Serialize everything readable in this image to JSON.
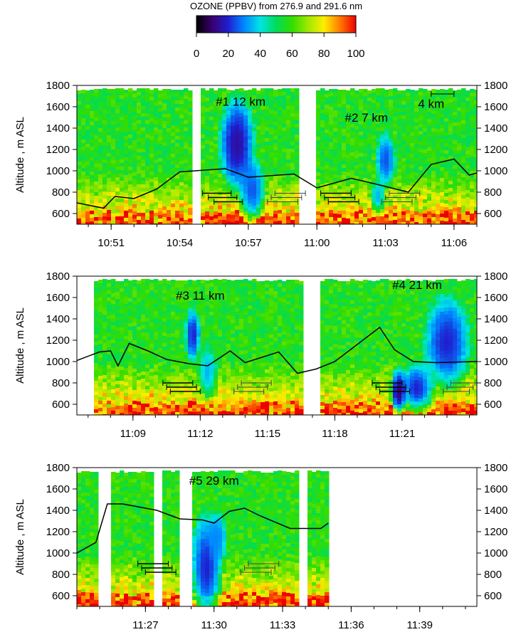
{
  "colorbar": {
    "title": "OZONE (PPBV) from 276.9 and 291.6 nm",
    "ticks": [
      0,
      20,
      40,
      60,
      80,
      100
    ],
    "range": [
      0,
      100
    ]
  },
  "chart_data": [
    {
      "type": "heatmap",
      "panel": 1,
      "ylabel": "Altitude , m ASL",
      "ylim": [
        500,
        1800
      ],
      "yticks": [
        600,
        800,
        1000,
        1200,
        1400,
        1600,
        1800
      ],
      "x_start": "10:49:30",
      "x_end": "11:07:00",
      "xticks": [
        "10:51",
        "10:54",
        "10:57",
        "11:00",
        "11:03",
        "11:06"
      ],
      "gaps": [
        [
          "10:54:30",
          "10:55:00"
        ],
        [
          "10:59:15",
          "11:00:00"
        ]
      ],
      "annotations": [
        {
          "text": "#1  12 km",
          "time": "10:56:40",
          "alt": 1610
        },
        {
          "text": "#2  7 km",
          "time": "11:02:10",
          "alt": 1460
        },
        {
          "text": "4 km",
          "time": "11:05:00",
          "alt": 1590
        }
      ],
      "scale_bar": {
        "from": "11:05:00",
        "to": "11:06:00",
        "alt": 1720
      },
      "plumes": [
        {
          "time": "10:56:30",
          "alt": 1250,
          "dt_min": 0.9,
          "dalt": 520,
          "value": 15
        },
        {
          "time": "10:57:10",
          "alt": 820,
          "dt_min": 0.7,
          "dalt": 350,
          "value": 25
        },
        {
          "time": "11:03:00",
          "alt": 1100,
          "dt_min": 0.5,
          "dalt": 300,
          "value": 25
        },
        {
          "time": "11:02:40",
          "alt": 760,
          "dt_min": 0.4,
          "dalt": 200,
          "value": 35
        }
      ],
      "line_black": [
        [
          "10:49:30",
          700
        ],
        [
          "10:50:40",
          650
        ],
        [
          "10:51:10",
          760
        ],
        [
          "10:52:00",
          740
        ],
        [
          "10:53:00",
          830
        ],
        [
          "10:54:00",
          990
        ],
        [
          "10:56:00",
          1020
        ],
        [
          "10:57:00",
          940
        ],
        [
          "10:59:00",
          970
        ],
        [
          "11:00:00",
          840
        ],
        [
          "11:01:30",
          930
        ],
        [
          "11:02:30",
          880
        ],
        [
          "11:04:00",
          800
        ],
        [
          "11:05:00",
          1060
        ],
        [
          "11:06:00",
          1110
        ],
        [
          "11:06:40",
          960
        ],
        [
          "11:07:00",
          980
        ]
      ],
      "segments": [
        {
          "from": "10:55:00",
          "to": "10:56:15",
          "alt": 790,
          "style": "black"
        },
        {
          "from": "10:55:15",
          "to": "10:56:30",
          "alt": 750,
          "style": "black"
        },
        {
          "from": "10:55:30",
          "to": "10:56:45",
          "alt": 710,
          "style": "black"
        },
        {
          "from": "10:58:10",
          "to": "10:59:30",
          "alt": 790,
          "style": "gray"
        },
        {
          "from": "10:58:00",
          "to": "10:59:20",
          "alt": 750,
          "style": "gray"
        },
        {
          "from": "10:57:50",
          "to": "10:59:10",
          "alt": 710,
          "style": "gray"
        },
        {
          "from": "11:00:10",
          "to": "11:01:30",
          "alt": 790,
          "style": "black"
        },
        {
          "from": "11:00:20",
          "to": "11:01:40",
          "alt": 750,
          "style": "black"
        },
        {
          "from": "11:00:30",
          "to": "11:01:50",
          "alt": 710,
          "style": "black"
        },
        {
          "from": "11:03:10",
          "to": "11:04:30",
          "alt": 790,
          "style": "gray"
        },
        {
          "from": "11:03:00",
          "to": "11:04:20",
          "alt": 750,
          "style": "gray"
        },
        {
          "from": "11:02:50",
          "to": "11:04:10",
          "alt": 710,
          "style": "gray"
        }
      ]
    },
    {
      "type": "heatmap",
      "panel": 2,
      "ylabel": "Altitude , m ASL",
      "ylim": [
        500,
        1800
      ],
      "yticks": [
        600,
        800,
        1000,
        1200,
        1400,
        1600,
        1800
      ],
      "x_start": "11:06:30",
      "x_end": "11:24:20",
      "xticks": [
        "11:09",
        "11:12",
        "11:15",
        "11:18",
        "11:21"
      ],
      "gaps": [
        [
          "11:06:30",
          "11:07:10"
        ],
        [
          "11:16:40",
          "11:17:25"
        ]
      ],
      "annotations": [
        {
          "text": "#3  11 km",
          "time": "11:12:00",
          "alt": 1580
        },
        {
          "text": "#4  21 km",
          "time": "11:21:40",
          "alt": 1680
        }
      ],
      "plumes": [
        {
          "time": "11:11:40",
          "alt": 1250,
          "dt_min": 0.4,
          "dalt": 300,
          "value": 20
        },
        {
          "time": "11:12:20",
          "alt": 900,
          "dt_min": 0.5,
          "dalt": 300,
          "value": 35
        },
        {
          "time": "11:23:00",
          "alt": 1180,
          "dt_min": 1.2,
          "dalt": 520,
          "value": 20
        },
        {
          "time": "11:21:40",
          "alt": 750,
          "dt_min": 0.9,
          "dalt": 280,
          "value": 20
        },
        {
          "time": "11:20:50",
          "alt": 720,
          "dt_min": 0.4,
          "dalt": 260,
          "value": 10
        }
      ],
      "line_black": [
        [
          "11:06:30",
          1010
        ],
        [
          "11:07:30",
          1090
        ],
        [
          "11:08:00",
          1100
        ],
        [
          "11:08:20",
          960
        ],
        [
          "11:08:50",
          1170
        ],
        [
          "11:09:40",
          1100
        ],
        [
          "11:10:30",
          1020
        ],
        [
          "11:11:30",
          980
        ],
        [
          "11:12:20",
          960
        ],
        [
          "11:13:20",
          1100
        ],
        [
          "11:14:00",
          990
        ],
        [
          "11:15:30",
          1090
        ],
        [
          "11:16:20",
          890
        ],
        [
          "11:17:10",
          930
        ],
        [
          "11:18:00",
          1000
        ],
        [
          "11:20:00",
          1320
        ],
        [
          "11:20:40",
          1110
        ],
        [
          "11:21:30",
          1000
        ],
        [
          "11:22:30",
          990
        ],
        [
          "11:24:20",
          1000
        ]
      ],
      "segments": [
        {
          "from": "11:10:20",
          "to": "11:11:40",
          "alt": 800,
          "style": "black"
        },
        {
          "from": "11:10:30",
          "to": "11:11:50",
          "alt": 760,
          "style": "black"
        },
        {
          "from": "11:10:40",
          "to": "11:12:00",
          "alt": 720,
          "style": "black"
        },
        {
          "from": "11:13:50",
          "to": "11:15:10",
          "alt": 800,
          "style": "gray"
        },
        {
          "from": "11:13:40",
          "to": "11:15:00",
          "alt": 760,
          "style": "gray"
        },
        {
          "from": "11:13:30",
          "to": "11:14:50",
          "alt": 720,
          "style": "gray"
        },
        {
          "from": "11:19:40",
          "to": "11:21:00",
          "alt": 800,
          "style": "black"
        },
        {
          "from": "11:19:50",
          "to": "11:21:10",
          "alt": 760,
          "style": "black"
        },
        {
          "from": "11:20:00",
          "to": "11:21:20",
          "alt": 720,
          "style": "black"
        },
        {
          "from": "11:23:10",
          "to": "11:24:20",
          "alt": 800,
          "style": "gray"
        },
        {
          "from": "11:23:00",
          "to": "11:24:10",
          "alt": 760,
          "style": "gray"
        },
        {
          "from": "11:22:50",
          "to": "11:24:00",
          "alt": 720,
          "style": "gray"
        }
      ]
    },
    {
      "type": "heatmap",
      "panel": 3,
      "ylabel": "Altitude , m ASL",
      "ylim": [
        500,
        1800
      ],
      "yticks": [
        600,
        800,
        1000,
        1200,
        1400,
        1600,
        1800
      ],
      "x_start": "11:24:00",
      "x_end": "11:41:30",
      "xticks": [
        "11:27",
        "11:30",
        "11:33",
        "11:36",
        "11:39"
      ],
      "data_end": "11:35:00",
      "gaps": [
        [
          "11:25:00",
          "11:25:30"
        ],
        [
          "11:27:20",
          "11:27:40"
        ],
        [
          "11:28:30",
          "11:29:00"
        ],
        [
          "11:33:40",
          "11:34:00"
        ]
      ],
      "annotations": [
        {
          "text": "#5  29 km",
          "time": "11:30:00",
          "alt": 1640
        }
      ],
      "plumes": [
        {
          "time": "11:29:40",
          "alt": 850,
          "dt_min": 0.8,
          "dalt": 600,
          "value": 20
        },
        {
          "time": "11:30:10",
          "alt": 1150,
          "dt_min": 0.5,
          "dalt": 300,
          "value": 30
        }
      ],
      "line_black": [
        [
          "11:24:00",
          1000
        ],
        [
          "11:24:50",
          1100
        ],
        [
          "11:25:20",
          1460
        ],
        [
          "11:26:00",
          1460
        ],
        [
          "11:27:30",
          1400
        ],
        [
          "11:28:30",
          1320
        ],
        [
          "11:29:30",
          1310
        ],
        [
          "11:30:00",
          1280
        ],
        [
          "11:30:40",
          1390
        ],
        [
          "11:31:20",
          1420
        ],
        [
          "11:32:00",
          1350
        ],
        [
          "11:33:20",
          1230
        ],
        [
          "11:34:40",
          1230
        ],
        [
          "11:35:00",
          1280
        ]
      ],
      "segments": [
        {
          "from": "11:26:40",
          "to": "11:28:00",
          "alt": 900,
          "style": "black"
        },
        {
          "from": "11:26:50",
          "to": "11:28:10",
          "alt": 860,
          "style": "black"
        },
        {
          "from": "11:27:00",
          "to": "11:28:20",
          "alt": 820,
          "style": "black"
        },
        {
          "from": "11:31:30",
          "to": "11:32:50",
          "alt": 900,
          "style": "gray"
        },
        {
          "from": "11:31:20",
          "to": "11:32:40",
          "alt": 860,
          "style": "gray"
        },
        {
          "from": "11:31:10",
          "to": "11:32:30",
          "alt": 820,
          "style": "gray"
        }
      ]
    }
  ]
}
